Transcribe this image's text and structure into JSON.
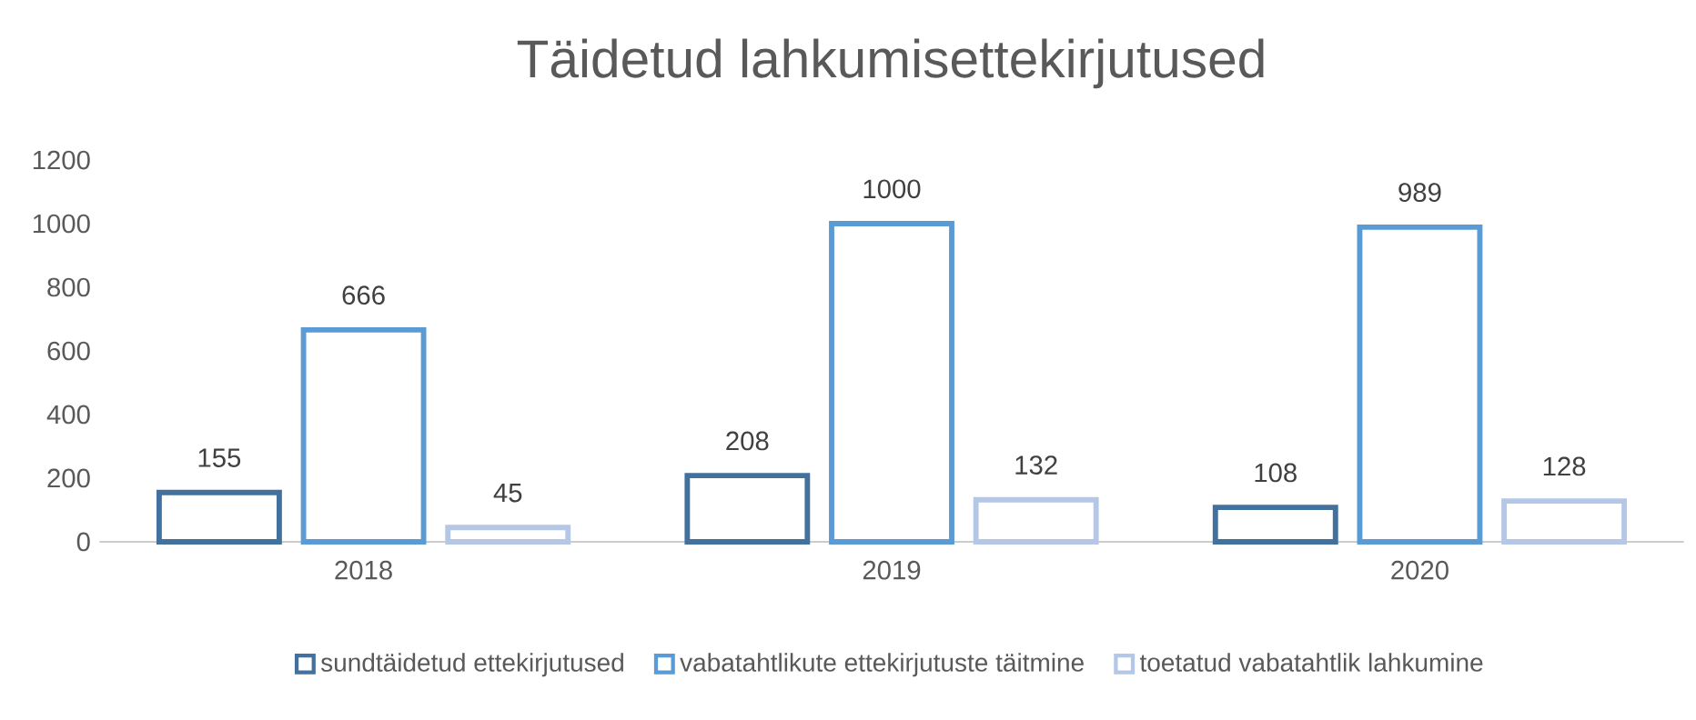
{
  "chart_data": {
    "type": "bar",
    "title": "Täidetud lahkumisettekirjutused",
    "categories": [
      "2018",
      "2019",
      "2020"
    ],
    "series": [
      {
        "name": "sundtäidetud ettekirjutused",
        "color": "#41719c",
        "values": [
          155,
          208,
          108
        ]
      },
      {
        "name": "vabatahtlikute ettekirjutuste täitmine",
        "color": "#5b9bd5",
        "values": [
          666,
          1000,
          989
        ]
      },
      {
        "name": "toetatud vabatahtlik lahkumine",
        "color": "#b4c7e7",
        "values": [
          45,
          132,
          128
        ]
      }
    ],
    "ylim": [
      0,
      1200
    ],
    "yticks": [
      0,
      200,
      400,
      600,
      800,
      1000,
      1200
    ],
    "data_labels": true,
    "legend": "bottom",
    "grid": false
  }
}
